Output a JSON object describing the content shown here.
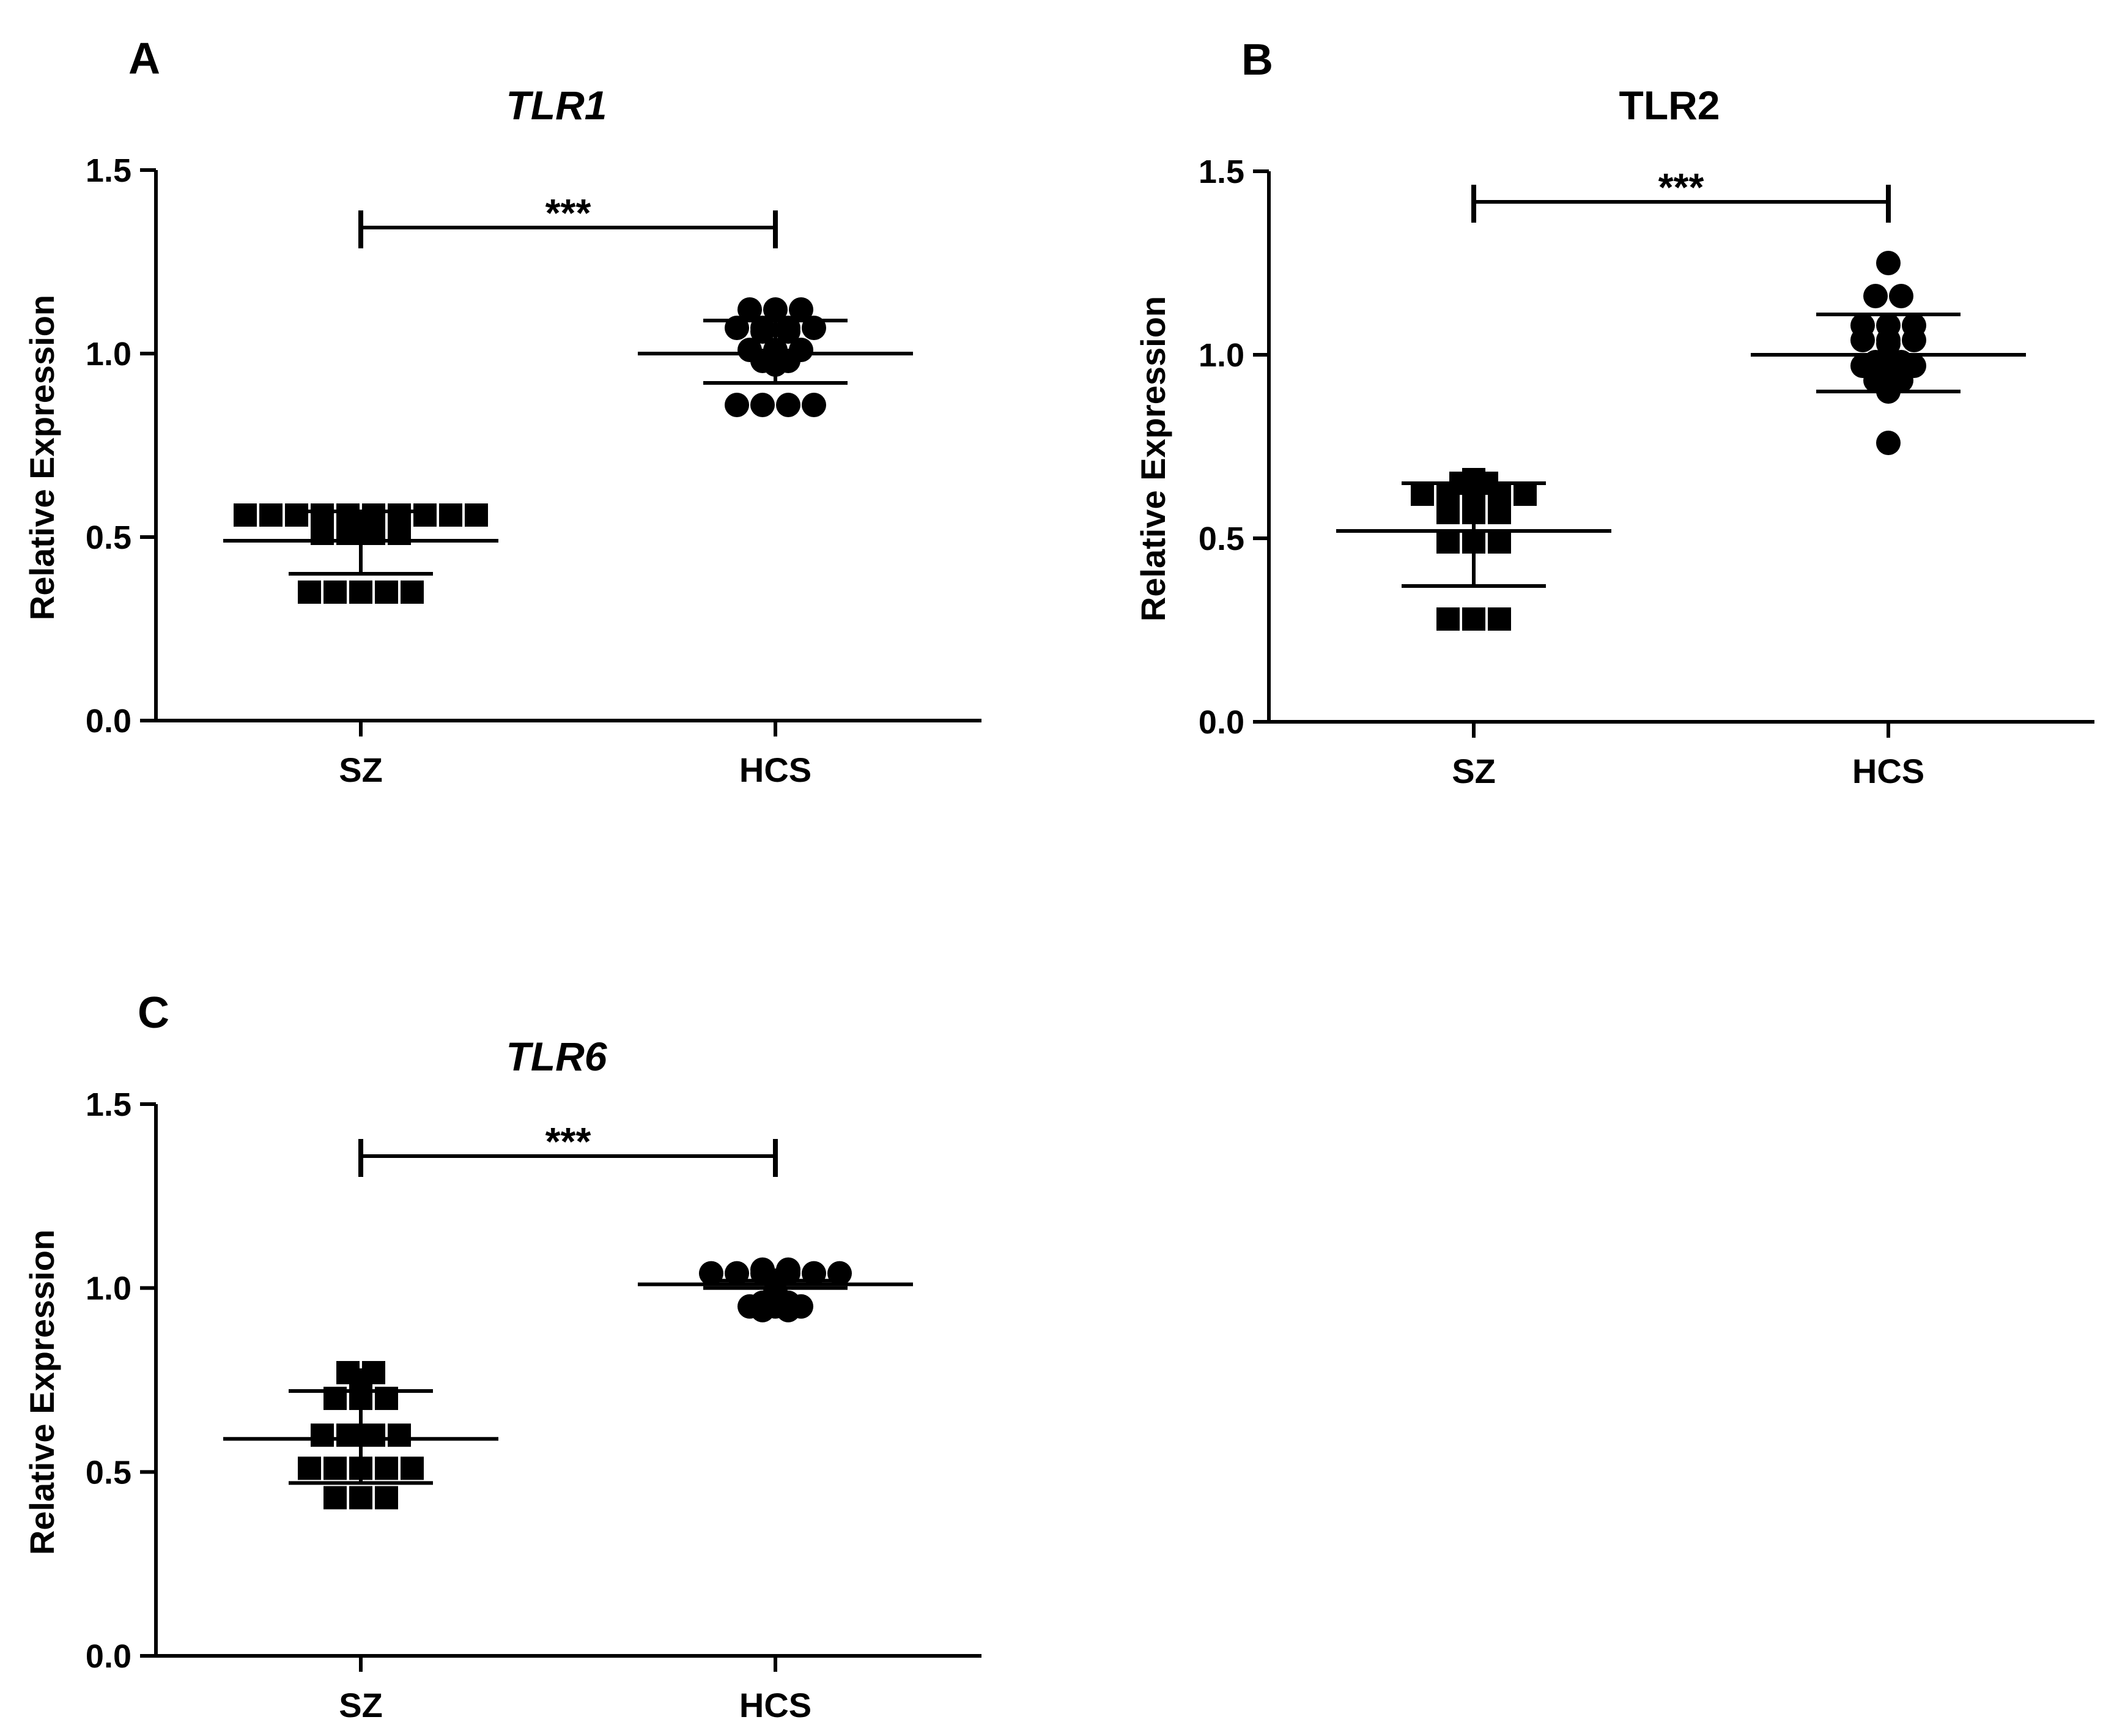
{
  "chart_data": [
    {
      "panel": "A",
      "type": "scatter",
      "title": "TLR1",
      "title_italic": true,
      "ylabel": "Relative Expression",
      "xlabel": "",
      "categories": [
        "SZ",
        "HCS"
      ],
      "ylim": [
        0,
        1.5
      ],
      "yticks": [
        "0.0",
        "0.5",
        "1.0",
        "1.5"
      ],
      "significance": "***",
      "series": [
        {
          "name": "SZ",
          "marker": "square",
          "mean": 0.49,
          "sd_low": 0.4,
          "sd_high": 0.57,
          "values": [
            0.56,
            0.56,
            0.56,
            0.56,
            0.56,
            0.56,
            0.56,
            0.56,
            0.56,
            0.56,
            0.51,
            0.51,
            0.51,
            0.51,
            0.35,
            0.35,
            0.35,
            0.35,
            0.35
          ]
        },
        {
          "name": "HCS",
          "marker": "circle",
          "mean": 1.0,
          "sd_low": 0.92,
          "sd_high": 1.09,
          "values": [
            1.12,
            1.12,
            1.12,
            1.07,
            1.07,
            1.07,
            1.07,
            1.06,
            1.06,
            1.01,
            1.01,
            1.01,
            0.98,
            0.98,
            0.97,
            0.86,
            0.86,
            0.86,
            0.86
          ]
        }
      ]
    },
    {
      "panel": "B",
      "type": "scatter",
      "title": "TLR2",
      "title_italic": false,
      "ylabel": "Relative Expression",
      "xlabel": "",
      "categories": [
        "SZ",
        "HCS"
      ],
      "ylim": [
        0,
        1.5
      ],
      "yticks": [
        "0.0",
        "0.5",
        "1.0",
        "1.5"
      ],
      "significance": "***",
      "series": [
        {
          "name": "SZ",
          "marker": "square",
          "mean": 0.52,
          "sd_low": 0.37,
          "sd_high": 0.65,
          "values": [
            0.66,
            0.65,
            0.65,
            0.62,
            0.62,
            0.62,
            0.62,
            0.62,
            0.57,
            0.57,
            0.57,
            0.49,
            0.49,
            0.49,
            0.28,
            0.28,
            0.28
          ]
        },
        {
          "name": "HCS",
          "marker": "circle",
          "mean": 1.0,
          "sd_low": 0.9,
          "sd_high": 1.11,
          "values": [
            1.25,
            1.16,
            1.16,
            1.08,
            1.08,
            1.08,
            1.04,
            1.04,
            1.04,
            1.03,
            0.98,
            0.98,
            0.97,
            0.97,
            0.97,
            0.93,
            0.93,
            0.9,
            0.76
          ]
        }
      ]
    },
    {
      "panel": "C",
      "type": "scatter",
      "title": "TLR6",
      "title_italic": true,
      "ylabel": "Relative Expression",
      "xlabel": "",
      "categories": [
        "SZ",
        "HCS"
      ],
      "ylim": [
        0,
        1.5
      ],
      "yticks": [
        "0.0",
        "0.5",
        "1.0",
        "1.5"
      ],
      "significance": "***",
      "series": [
        {
          "name": "SZ",
          "marker": "square",
          "mean": 0.59,
          "sd_low": 0.47,
          "sd_high": 0.72,
          "values": [
            0.77,
            0.77,
            0.75,
            0.7,
            0.7,
            0.7,
            0.6,
            0.6,
            0.6,
            0.6,
            0.51,
            0.51,
            0.51,
            0.51,
            0.51,
            0.43,
            0.43,
            0.43
          ]
        },
        {
          "name": "HCS",
          "marker": "circle",
          "mean": 1.01,
          "sd_low": 1.0,
          "sd_high": 1.02,
          "values": [
            1.05,
            1.05,
            1.04,
            1.04,
            1.04,
            1.04,
            1.04,
            1.04,
            1.02,
            0.99,
            0.96,
            0.96,
            0.95,
            0.95,
            0.95,
            0.94,
            0.94
          ]
        }
      ]
    }
  ]
}
